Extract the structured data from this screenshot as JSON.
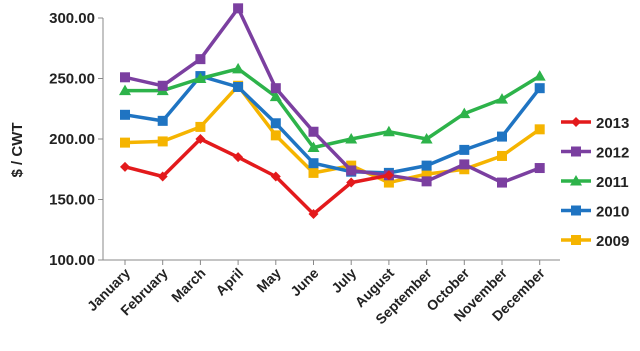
{
  "chart_data": {
    "type": "line",
    "title": "",
    "xlabel": "",
    "ylabel": "$ / CWT",
    "ylim": [
      100,
      300
    ],
    "yticks": [
      "100.00",
      "150.00",
      "200.00",
      "250.00",
      "300.00"
    ],
    "categories": [
      "January",
      "February",
      "March",
      "April",
      "May",
      "June",
      "July",
      "August",
      "September",
      "October",
      "November",
      "December"
    ],
    "grid": false,
    "legend_position": "right",
    "series": [
      {
        "name": "2013",
        "color": "#e31a1c",
        "marker": "diamond",
        "values": [
          177,
          169,
          200,
          185,
          169,
          138,
          164,
          170,
          null,
          null,
          null,
          null
        ]
      },
      {
        "name": "2012",
        "color": "#7b3fa0",
        "marker": "square",
        "values": [
          251,
          244,
          266,
          308,
          242,
          206,
          174,
          170,
          165,
          179,
          164,
          176
        ]
      },
      {
        "name": "2011",
        "color": "#2db34a",
        "marker": "triangle",
        "values": [
          240,
          240,
          250,
          258,
          235,
          193,
          200,
          206,
          200,
          221,
          233,
          252
        ]
      },
      {
        "name": "2010",
        "color": "#1f74c2",
        "marker": "square",
        "values": [
          220,
          215,
          252,
          243,
          213,
          180,
          173,
          172,
          178,
          191,
          202,
          242
        ]
      },
      {
        "name": "2009",
        "color": "#f5b400",
        "marker": "square",
        "values": [
          197,
          198,
          210,
          244,
          203,
          172,
          178,
          164,
          171,
          175,
          186,
          208
        ]
      }
    ]
  }
}
